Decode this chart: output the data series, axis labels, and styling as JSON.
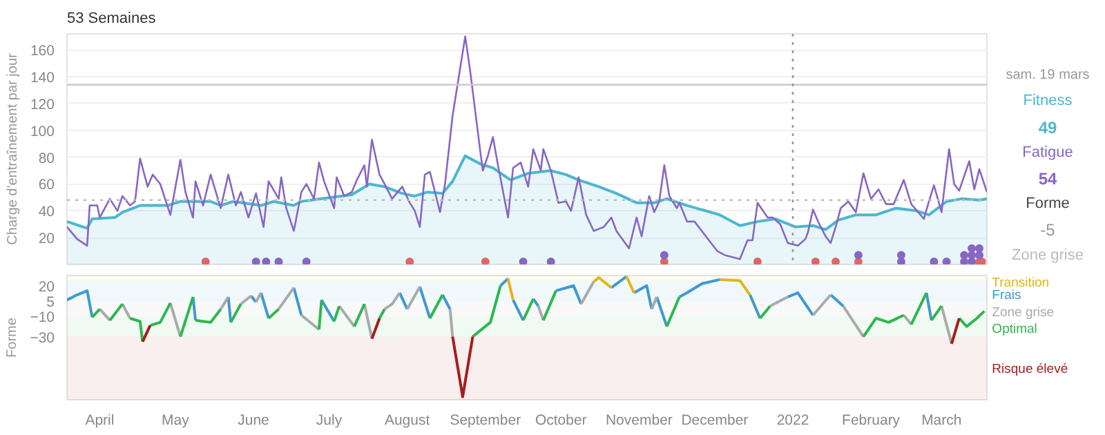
{
  "chart_data": [
    {
      "type": "line",
      "title": "53 Semaines",
      "ylabel": "Charge d'entraînement par jour",
      "xlim": [
        "2021-03-19",
        "2022-03-19"
      ],
      "ylim": [
        0,
        172
      ],
      "yticks": [
        20,
        40,
        60,
        80,
        100,
        120,
        140,
        160
      ],
      "grid": "y",
      "tick_labels": "y",
      "annotations": [
        "sam. 19 mars",
        "49",
        "54",
        "Forme",
        "-5",
        "Zone grise"
      ],
      "ref_lines": [
        {
          "axis": "y",
          "value": 134,
          "color": "#cccccc",
          "line_style": "solid"
        },
        {
          "axis": "y",
          "value": 48,
          "color": "#bbbbbb",
          "line_style": "dotted"
        },
        {
          "axis": "x",
          "value": "2022-01-01",
          "color": "#999999",
          "line_style": "dotted"
        }
      ],
      "series": [
        {
          "name": "Fitness",
          "type": "area",
          "color": "#4db6d0",
          "x": [
            "2021-03-19",
            "2021-03-27",
            "2021-03-29",
            "2021-04-07",
            "2021-04-10",
            "2021-04-17",
            "2021-04-28",
            "2021-05-03",
            "2021-05-15",
            "2021-05-19",
            "2021-05-24",
            "2021-06-04",
            "2021-06-09",
            "2021-06-17",
            "2021-06-20",
            "2021-06-28",
            "2021-07-10",
            "2021-07-17",
            "2021-07-23",
            "2021-07-30",
            "2021-08-04",
            "2021-08-09",
            "2021-08-15",
            "2021-08-19",
            "2021-08-24",
            "2021-08-30",
            "2021-09-04",
            "2021-09-11",
            "2021-09-18",
            "2021-09-27",
            "2021-10-03",
            "2021-10-08",
            "2021-10-16",
            "2021-10-23",
            "2021-10-31",
            "2021-11-07",
            "2021-11-12",
            "2021-11-20",
            "2021-12-03",
            "2021-12-11",
            "2021-12-18",
            "2021-12-25",
            "2022-01-02",
            "2022-01-09",
            "2022-01-14",
            "2022-01-19",
            "2022-01-26",
            "2022-02-03",
            "2022-02-11",
            "2022-02-19",
            "2022-02-24",
            "2022-03-03",
            "2022-03-09",
            "2022-03-16",
            "2022-03-19"
          ],
          "values": [
            32,
            27,
            34,
            35,
            39,
            44,
            44,
            47,
            47,
            44,
            47,
            44,
            47,
            44,
            47,
            49,
            52,
            60,
            58,
            53,
            51,
            54,
            53,
            62,
            81,
            75,
            72,
            63,
            68,
            70,
            67,
            63,
            58,
            53,
            46,
            46,
            49,
            44,
            37,
            29,
            32,
            34,
            28,
            29,
            26,
            33,
            37,
            37,
            42,
            40,
            37,
            47,
            49,
            48,
            49
          ]
        },
        {
          "name": "Fatigue",
          "color": "#8866c4",
          "x": [
            "2021-03-19",
            "2021-03-23",
            "2021-03-27",
            "2021-03-28",
            "2021-03-31",
            "2021-04-01",
            "2021-04-05",
            "2021-04-08",
            "2021-04-10",
            "2021-04-13",
            "2021-04-15",
            "2021-04-17",
            "2021-04-20",
            "2021-04-22",
            "2021-04-25",
            "2021-04-29",
            "2021-05-03",
            "2021-05-05",
            "2021-05-08",
            "2021-05-09",
            "2021-05-12",
            "2021-05-15",
            "2021-05-19",
            "2021-05-22",
            "2021-05-25",
            "2021-05-27",
            "2021-05-30",
            "2021-06-02",
            "2021-06-05",
            "2021-06-07",
            "2021-06-11",
            "2021-06-12",
            "2021-06-14",
            "2021-06-17",
            "2021-06-20",
            "2021-06-22",
            "2021-06-25",
            "2021-06-27",
            "2021-06-29",
            "2021-07-03",
            "2021-07-04",
            "2021-07-07",
            "2021-07-10",
            "2021-07-12",
            "2021-07-15",
            "2021-07-16",
            "2021-07-18",
            "2021-07-21",
            "2021-07-23",
            "2021-07-26",
            "2021-07-30",
            "2021-08-02",
            "2021-08-04",
            "2021-08-06",
            "2021-08-08",
            "2021-08-10",
            "2021-08-14",
            "2021-08-16",
            "2021-08-19",
            "2021-08-24",
            "2021-08-26",
            "2021-08-30",
            "2021-08-31",
            "2021-09-02",
            "2021-09-04",
            "2021-09-06",
            "2021-09-10",
            "2021-09-12",
            "2021-09-15",
            "2021-09-18",
            "2021-09-20",
            "2021-09-23",
            "2021-09-24",
            "2021-09-27",
            "2021-09-30",
            "2021-10-03",
            "2021-10-05",
            "2021-10-08",
            "2021-10-11",
            "2021-10-14",
            "2021-10-18",
            "2021-10-21",
            "2021-10-23",
            "2021-10-28",
            "2021-10-31",
            "2021-11-02",
            "2021-11-05",
            "2021-11-07",
            "2021-11-09",
            "2021-11-11",
            "2021-11-13",
            "2021-11-16",
            "2021-11-17",
            "2021-11-20",
            "2021-11-23",
            "2021-12-02",
            "2021-12-05",
            "2021-12-11",
            "2021-12-14",
            "2021-12-16",
            "2021-12-18",
            "2021-12-22",
            "2021-12-24",
            "2021-12-27",
            "2021-12-30",
            "2022-01-03",
            "2022-01-06",
            "2022-01-07",
            "2022-01-09",
            "2022-01-11",
            "2022-01-14",
            "2022-01-16",
            "2022-01-18",
            "2022-01-20",
            "2022-01-23",
            "2022-01-26",
            "2022-01-29",
            "2022-02-01",
            "2022-02-04",
            "2022-02-07",
            "2022-02-10",
            "2022-02-14",
            "2022-02-17",
            "2022-02-22",
            "2022-02-24",
            "2022-02-26",
            "2022-03-01",
            "2022-03-04",
            "2022-03-06",
            "2022-03-08",
            "2022-03-12",
            "2022-03-14",
            "2022-03-16",
            "2022-03-19"
          ],
          "values": [
            28,
            19,
            14,
            44,
            44,
            35,
            49,
            40,
            51,
            44,
            47,
            79,
            58,
            67,
            60,
            37,
            78,
            54,
            35,
            62,
            44,
            67,
            42,
            67,
            44,
            54,
            35,
            53,
            28,
            62,
            49,
            65,
            42,
            25,
            54,
            60,
            49,
            76,
            62,
            42,
            65,
            51,
            54,
            63,
            74,
            58,
            93,
            67,
            60,
            49,
            58,
            46,
            40,
            28,
            67,
            69,
            39,
            60,
            111,
            170,
            144,
            84,
            70,
            81,
            95,
            74,
            35,
            72,
            76,
            58,
            86,
            70,
            86,
            70,
            46,
            47,
            40,
            65,
            37,
            25,
            28,
            35,
            25,
            12,
            35,
            21,
            51,
            39,
            47,
            74,
            51,
            42,
            46,
            32,
            32,
            10,
            7,
            4,
            18,
            18,
            46,
            35,
            35,
            30,
            16,
            14,
            19,
            24,
            41,
            32,
            21,
            16,
            28,
            42,
            47,
            39,
            68,
            49,
            56,
            45,
            45,
            63,
            45,
            34,
            47,
            59,
            39,
            86,
            60,
            55,
            77,
            56,
            71,
            54
          ]
        },
        {
          "type": "scatter",
          "marker": "circle",
          "color": "#e06666",
          "x": [
            "2021-05-13",
            "2021-08-02",
            "2021-09-01",
            "2021-11-11",
            "2021-12-18",
            "2022-01-10",
            "2022-01-18",
            "2022-01-27",
            "2022-03-16",
            "2022-03-17"
          ],
          "values": [
            2,
            2,
            2,
            2,
            2,
            2,
            2,
            2,
            2,
            2
          ]
        },
        {
          "type": "scatter",
          "marker": "circle",
          "color": "#8866c4",
          "x": [
            "2021-06-02",
            "2021-06-06",
            "2021-06-11",
            "2021-06-22",
            "2021-09-16",
            "2021-09-27",
            "2021-11-11",
            "2022-01-27",
            "2022-02-13",
            "2022-02-13",
            "2022-02-26",
            "2022-03-03",
            "2022-03-10",
            "2022-03-10",
            "2022-03-13",
            "2022-03-13",
            "2022-03-13",
            "2022-03-16",
            "2022-03-16"
          ],
          "values": [
            2,
            2,
            2,
            2,
            2,
            2,
            7,
            7,
            2,
            7,
            2,
            2,
            2,
            7,
            2,
            7,
            12,
            7,
            12
          ]
        }
      ]
    },
    {
      "type": "line",
      "ylabel": "Forme",
      "xlim": [
        "2021-03-19",
        "2022-03-19"
      ],
      "ylim": [
        -92,
        30
      ],
      "yticks": [
        20,
        5,
        -10,
        -30
      ],
      "xticks": [
        {
          "value": "2021-04-01",
          "label": "April"
        },
        {
          "value": "2021-05-01",
          "label": "May"
        },
        {
          "value": "2021-06-01",
          "label": "June"
        },
        {
          "value": "2021-07-01",
          "label": "July"
        },
        {
          "value": "2021-08-01",
          "label": "August"
        },
        {
          "value": "2021-09-01",
          "label": "September"
        },
        {
          "value": "2021-10-01",
          "label": "October"
        },
        {
          "value": "2021-11-01",
          "label": "November"
        },
        {
          "value": "2021-12-01",
          "label": "December"
        },
        {
          "value": "2022-01-01",
          "label": "2022"
        },
        {
          "value": "2022-02-01",
          "label": "February"
        },
        {
          "value": "2022-03-01",
          "label": "March"
        }
      ],
      "bands": [
        {
          "axis": "y",
          "from": 25,
          "to": 30,
          "label": "Transition",
          "color": "#e0b51c"
        },
        {
          "axis": "y",
          "from": 5,
          "to": 25,
          "label": "Frais",
          "color": "#3d9ad1"
        },
        {
          "axis": "y",
          "from": -10,
          "to": 5,
          "label": "Zone grise",
          "color": "#aaaaaa"
        },
        {
          "axis": "y",
          "from": -30,
          "to": -10,
          "label": "Optimal",
          "color": "#2db84d"
        },
        {
          "axis": "y",
          "from": -92,
          "to": -30,
          "label": "Risque élevé",
          "color": "#a81c1c"
        }
      ],
      "series": [
        {
          "color": "#3d9ad1",
          "x": [
            "2021-03-19",
            "2021-03-23",
            "2021-03-27",
            "2021-03-29",
            null,
            "2021-05-08",
            "2021-05-09",
            null,
            "2021-05-22",
            "2021-05-23",
            null,
            "2021-05-31",
            "2021-06-02",
            null,
            "2021-06-04",
            "2021-06-07",
            null,
            "2021-06-17",
            "2021-06-20",
            null,
            "2021-06-28",
            "2021-07-03",
            null,
            "2021-07-29",
            "2021-08-01",
            null,
            "2021-08-06",
            "2021-08-10",
            null,
            "2021-08-15",
            "2021-08-18",
            null,
            "2021-09-07",
            "2021-09-10",
            null,
            "2021-09-12",
            "2021-09-16",
            null,
            "2021-09-20",
            "2021-09-22",
            null,
            "2021-09-29",
            "2021-10-06",
            "2021-10-09",
            null,
            "2021-10-21",
            "2021-10-27",
            null,
            "2021-10-30",
            "2021-11-04",
            "2021-11-06",
            null,
            "2021-11-08",
            "2021-11-12",
            null,
            "2021-11-17",
            "2021-11-20",
            "2021-11-26",
            "2021-12-03",
            null,
            "2021-12-15",
            "2021-12-19",
            null,
            "2021-12-30",
            "2022-01-03",
            "2022-01-09",
            null,
            "2022-01-16",
            "2022-01-21",
            null,
            "2022-02-23",
            "2022-02-25"
          ],
          "values": [
            6,
            11,
            15,
            -11,
            null,
            9,
            -14,
            null,
            9,
            -16,
            null,
            10,
            4,
            null,
            13,
            -12,
            null,
            18,
            -9,
            null,
            6,
            -15,
            null,
            13,
            -3,
            null,
            19,
            -12,
            null,
            11,
            -3,
            null,
            20,
            27,
            null,
            6,
            -14,
            null,
            7,
            0,
            null,
            15,
            20,
            2,
            null,
            18,
            29,
            null,
            13,
            20,
            -3,
            null,
            9,
            -20,
            null,
            9,
            13,
            22,
            26,
            null,
            11,
            -12,
            null,
            9,
            13,
            -9,
            null,
            11,
            0,
            null,
            13,
            -14
          ]
        },
        {
          "color": "#e0b51c",
          "x": [
            "2021-09-10",
            "2021-09-12",
            null,
            "2021-10-14",
            "2021-10-16",
            "2021-10-21",
            null,
            "2021-10-27",
            "2021-10-30",
            null,
            "2021-12-03",
            "2021-12-11",
            "2021-12-15"
          ],
          "values": [
            27,
            6,
            null,
            24,
            28,
            18,
            null,
            29,
            13,
            null,
            26,
            25,
            11
          ]
        },
        {
          "color": "#aaaaaa",
          "x": [
            "2021-04-01",
            "2021-04-05",
            null,
            "2021-04-10",
            "2021-04-13",
            null,
            "2021-04-29",
            "2021-05-03",
            null,
            "2021-05-19",
            "2021-05-22",
            null,
            "2021-05-27",
            "2021-05-31",
            null,
            "2021-06-02",
            "2021-06-04",
            null,
            "2021-06-11",
            "2021-06-17",
            null,
            "2021-06-20",
            "2021-06-27",
            null,
            "2021-07-05",
            "2021-07-11",
            null,
            "2021-07-15",
            "2021-07-18",
            null,
            "2021-07-23",
            "2021-07-26",
            "2021-07-29",
            null,
            "2021-08-01",
            "2021-08-06",
            null,
            "2021-08-18",
            "2021-08-19",
            null,
            "2021-09-22",
            "2021-09-24",
            null,
            "2021-10-09",
            "2021-10-14",
            null,
            "2021-11-06",
            "2021-11-08",
            null,
            "2021-12-23",
            "2021-12-30",
            null,
            "2022-01-09",
            "2022-01-16",
            null,
            "2022-01-21",
            "2022-01-29",
            null,
            "2022-02-14",
            "2022-02-17",
            null,
            "2022-03-01",
            "2022-03-05"
          ],
          "values": [
            -3,
            -14,
            null,
            2,
            -12,
            null,
            3,
            -30,
            null,
            -3,
            9,
            null,
            2,
            10,
            null,
            4,
            13,
            null,
            -3,
            18,
            null,
            -9,
            -23,
            null,
            0,
            -20,
            null,
            2,
            -32,
            null,
            -3,
            2,
            13,
            null,
            -3,
            19,
            null,
            -3,
            -30,
            null,
            0,
            -14,
            null,
            2,
            24,
            null,
            -3,
            9,
            null,
            0,
            9,
            null,
            -9,
            11,
            null,
            0,
            -30,
            null,
            -9,
            -18,
            null,
            0,
            -37
          ]
        },
        {
          "color": "#2db84d",
          "x": [
            "2021-03-29",
            "2021-04-01",
            null,
            "2021-04-05",
            "2021-04-10",
            null,
            "2021-04-13",
            "2021-04-17",
            "2021-04-18",
            null,
            "2021-04-21",
            "2021-04-25",
            "2021-04-29",
            null,
            "2021-05-03",
            "2021-05-08",
            null,
            "2021-05-09",
            "2021-05-15",
            "2021-05-19",
            null,
            "2021-05-23",
            "2021-05-27",
            null,
            "2021-06-07",
            "2021-06-11",
            null,
            "2021-06-27",
            "2021-06-28",
            null,
            "2021-07-03",
            "2021-07-05",
            null,
            "2021-07-11",
            "2021-07-15",
            null,
            "2021-07-21",
            "2021-07-23",
            null,
            "2021-08-10",
            "2021-08-15",
            null,
            "2021-08-27",
            "2021-09-03",
            "2021-09-07",
            null,
            "2021-09-16",
            "2021-09-20",
            null,
            "2021-09-24",
            "2021-09-29",
            null,
            "2021-11-12",
            "2021-11-17",
            null,
            "2021-12-19",
            "2021-12-23",
            null,
            "2022-01-29",
            "2022-02-03",
            "2022-02-08",
            "2022-02-14",
            null,
            "2022-02-17",
            "2022-02-23",
            null,
            "2022-02-25",
            "2022-03-01",
            null,
            "2022-03-08",
            "2022-03-11",
            "2022-03-15",
            "2022-03-18"
          ],
          "values": [
            -11,
            -3,
            null,
            -14,
            2,
            null,
            -12,
            -15,
            -35,
            null,
            -19,
            -16,
            3,
            null,
            -30,
            9,
            null,
            -14,
            -16,
            -3,
            null,
            -16,
            2,
            null,
            -12,
            -3,
            null,
            -23,
            6,
            null,
            -15,
            0,
            null,
            -20,
            2,
            null,
            -12,
            -3,
            null,
            -12,
            11,
            null,
            -30,
            -16,
            20,
            null,
            -14,
            7,
            null,
            -14,
            15,
            null,
            -20,
            9,
            null,
            -12,
            0,
            null,
            -30,
            -12,
            -16,
            -9,
            null,
            -18,
            13,
            null,
            -14,
            0,
            null,
            -12,
            -20,
            -12,
            -5
          ]
        },
        {
          "color": "#a81c1c",
          "x": [
            "2021-04-18",
            "2021-04-21",
            null,
            "2021-07-18",
            "2021-07-21",
            null,
            "2021-08-19",
            "2021-08-23",
            "2021-08-27",
            null,
            "2022-03-05",
            "2022-03-08"
          ],
          "values": [
            -35,
            -19,
            null,
            -32,
            -12,
            null,
            -30,
            -89,
            -30,
            null,
            -37,
            -12
          ]
        }
      ]
    }
  ]
}
